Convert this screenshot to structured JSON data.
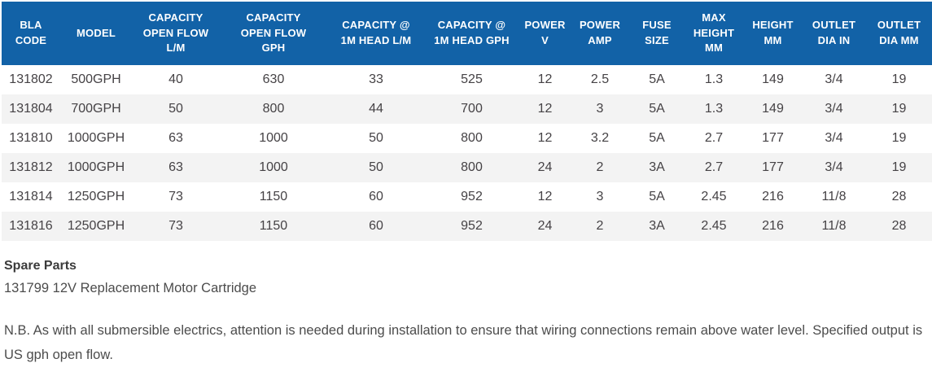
{
  "accent_color": "#1262a7",
  "stripe_color": "#f3f3f3",
  "table": {
    "columns": [
      {
        "id": "bla_code",
        "label": "BLA\nCODE"
      },
      {
        "id": "model",
        "label": "MODEL"
      },
      {
        "id": "cap_open_lm",
        "label": "CAPACITY\nOPEN FLOW\nL/M"
      },
      {
        "id": "cap_open_gph",
        "label": "CAPACITY\nOPEN FLOW\nGPH"
      },
      {
        "id": "cap_1m_lm",
        "label": "CAPACITY @\n1M HEAD L/M"
      },
      {
        "id": "cap_1m_gph",
        "label": "CAPACITY @\n1M HEAD GPH"
      },
      {
        "id": "power_v",
        "label": "POWER\nV"
      },
      {
        "id": "power_amp",
        "label": "POWER\nAMP"
      },
      {
        "id": "fuse_size",
        "label": "FUSE\nSIZE"
      },
      {
        "id": "max_height_mm",
        "label": "MAX\nHEIGHT\nMM"
      },
      {
        "id": "height_mm",
        "label": "HEIGHT\nMM"
      },
      {
        "id": "outlet_dia_in",
        "label": "OUTLET\nDIA IN"
      },
      {
        "id": "outlet_dia_mm",
        "label": "OUTLET\nDIA MM"
      }
    ],
    "rows": [
      [
        "131802",
        "500GPH",
        "40",
        "630",
        "33",
        "525",
        "12",
        "2.5",
        "5A",
        "1.3",
        "149",
        "3/4",
        "19"
      ],
      [
        "131804",
        "700GPH",
        "50",
        "800",
        "44",
        "700",
        "12",
        "3",
        "5A",
        "1.3",
        "149",
        "3/4",
        "19"
      ],
      [
        "131810",
        "1000GPH",
        "63",
        "1000",
        "50",
        "800",
        "12",
        "3.2",
        "5A",
        "2.7",
        "177",
        "3/4",
        "19"
      ],
      [
        "131812",
        "1000GPH",
        "63",
        "1000",
        "50",
        "800",
        "24",
        "2",
        "3A",
        "2.7",
        "177",
        "3/4",
        "19"
      ],
      [
        "131814",
        "1250GPH",
        "73",
        "1150",
        "60",
        "952",
        "12",
        "3",
        "5A",
        "2.45",
        "216",
        "11/8",
        "28"
      ],
      [
        "131816",
        "1250GPH",
        "73",
        "1150",
        "60",
        "952",
        "24",
        "2",
        "3A",
        "2.45",
        "216",
        "11/8",
        "28"
      ]
    ]
  },
  "spare_parts": {
    "heading": "Spare Parts",
    "item": "131799 12V Replacement Motor Cartridge"
  },
  "note": "N.B. As with all submersible electrics, attention is needed during installation to ensure that wiring connections remain above water level. Specified output is US gph open flow."
}
